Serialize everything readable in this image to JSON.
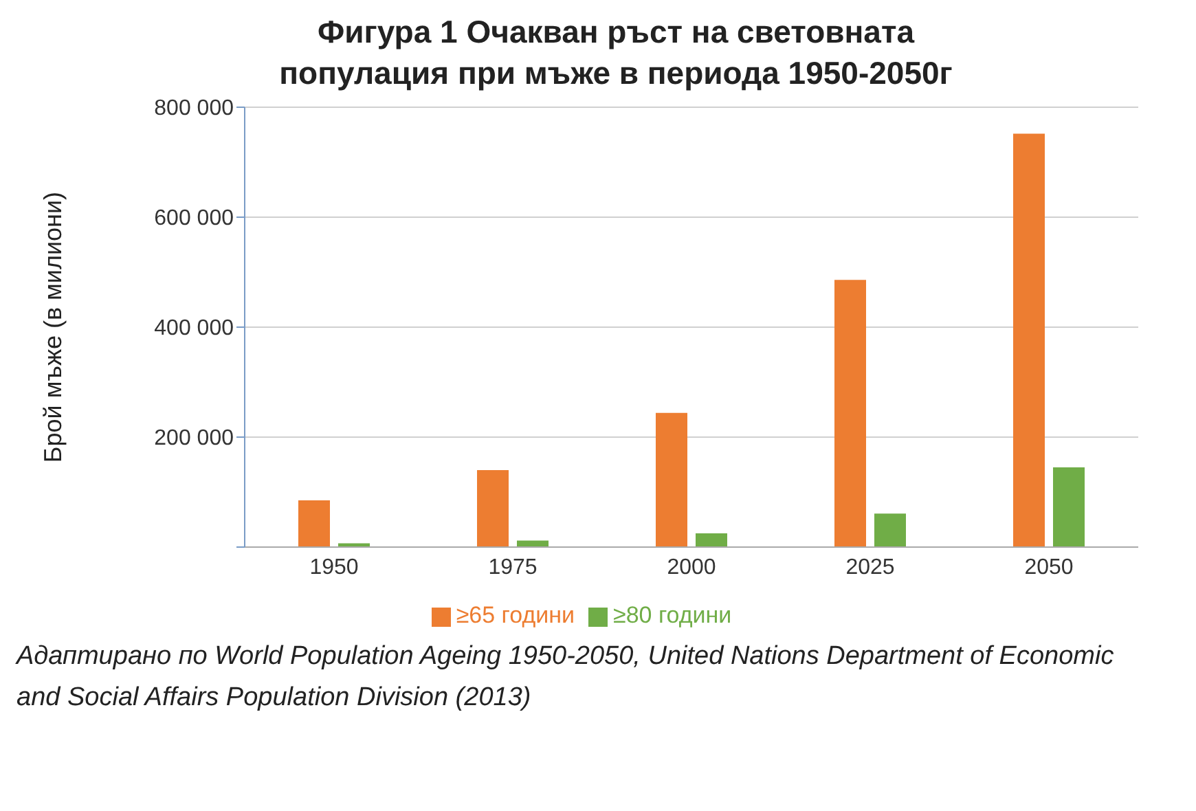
{
  "chart_data": {
    "type": "bar",
    "title": "Фигура 1 Очакван ръст на световната популация при мъже в периода 1950-2050г",
    "ylabel": "Брой мъже (в милиони)",
    "categories": [
      "1950",
      "1975",
      "2000",
      "2025",
      "2050"
    ],
    "series": [
      {
        "name": "≥65 години",
        "color": "#ed7d31",
        "values": [
          85000,
          140000,
          244000,
          486000,
          752000
        ]
      },
      {
        "name": "≥80 години",
        "color": "#70ad47",
        "values": [
          7000,
          12000,
          25000,
          61000,
          145000
        ]
      }
    ],
    "ylim": [
      0,
      800000
    ],
    "yticks": [
      {
        "value": 0,
        "label": null
      },
      {
        "value": 200000,
        "label": "200 000"
      },
      {
        "value": 400000,
        "label": "400 000"
      },
      {
        "value": 600000,
        "label": "600 000"
      },
      {
        "value": 800000,
        "label": "800 000"
      }
    ],
    "grid": "y",
    "legend": "bottom",
    "annotations": [
      "Адаптирано по World Population Ageing 1950-2050, United Nations Department of Economic and Social Affairs Population Division (2013)"
    ]
  }
}
